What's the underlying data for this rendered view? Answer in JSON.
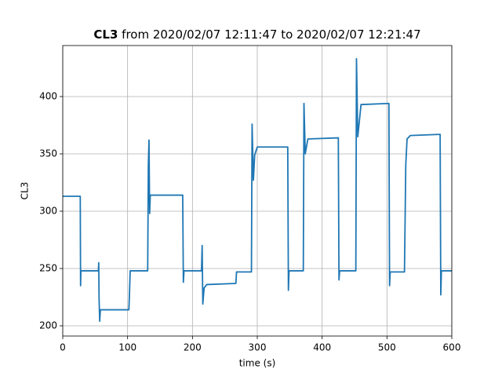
{
  "chart_data": {
    "type": "line",
    "title_bold": "CL3",
    "title": "from 2020/02/07 12:11:47 to 2020/02/07 12:21:47",
    "xlabel": "time (s)",
    "ylabel": "CL3",
    "x": [
      0,
      27,
      27.5,
      28,
      55,
      55.5,
      56,
      57,
      58,
      102,
      103,
      104,
      131,
      132,
      133,
      134,
      135,
      185,
      186,
      187,
      214,
      215,
      216,
      218,
      222,
      267,
      268,
      291,
      292,
      294,
      296,
      300,
      347,
      348,
      349,
      371,
      372,
      374,
      378,
      425,
      426,
      427,
      452,
      453,
      455,
      460,
      503,
      504,
      505,
      527,
      529,
      531,
      536,
      582,
      583,
      584,
      600
    ],
    "values": [
      313,
      313,
      235,
      248,
      248,
      255,
      224,
      204,
      214,
      214,
      230,
      248,
      248,
      340,
      362,
      298,
      314,
      314,
      238,
      248,
      248,
      270,
      219,
      233,
      236,
      237,
      247,
      247,
      376,
      327,
      349,
      356,
      356,
      231,
      248,
      248,
      394,
      350,
      363,
      364,
      240,
      248,
      248,
      433,
      365,
      393,
      394,
      235,
      247,
      247,
      340,
      363,
      366,
      367,
      227,
      248,
      248
    ],
    "color": "#1f77b4",
    "xlim": [
      0,
      600
    ],
    "xticks": [
      0,
      100,
      200,
      300,
      400,
      500,
      600
    ],
    "ylim": [
      191.1,
      444.5
    ],
    "yticks": [
      200,
      250,
      300,
      350,
      400
    ],
    "grid": true
  }
}
